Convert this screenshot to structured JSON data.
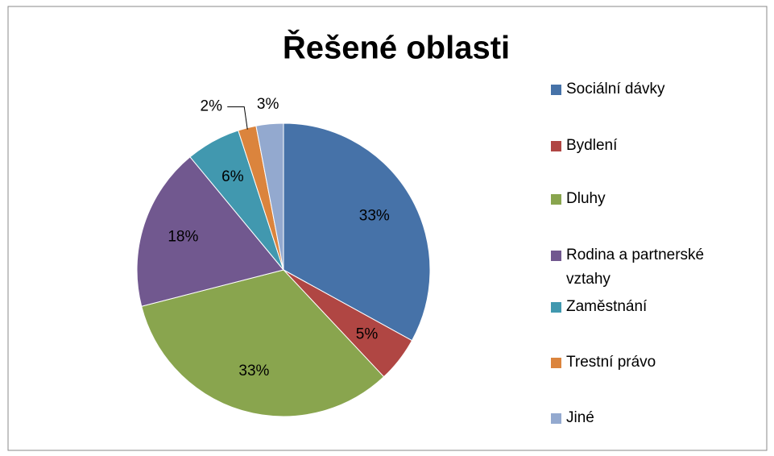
{
  "chart_data": {
    "type": "pie",
    "title": "Řešené oblasti",
    "categories": [
      "Sociální dávky",
      "Bydlení",
      "Dluhy",
      "Rodina a partnerské vztahy",
      "Zaměstnání",
      "Trestní právo",
      "Jiné"
    ],
    "values": [
      33,
      5,
      33,
      18,
      6,
      2,
      3
    ],
    "value_labels": [
      "33%",
      "5%",
      "33%",
      "18%",
      "6%",
      "2%",
      "3%"
    ],
    "colors": [
      "#4672a8",
      "#b04643",
      "#89a54e",
      "#71588f",
      "#4198af",
      "#db843d",
      "#93a9cf"
    ],
    "legend": "right"
  }
}
